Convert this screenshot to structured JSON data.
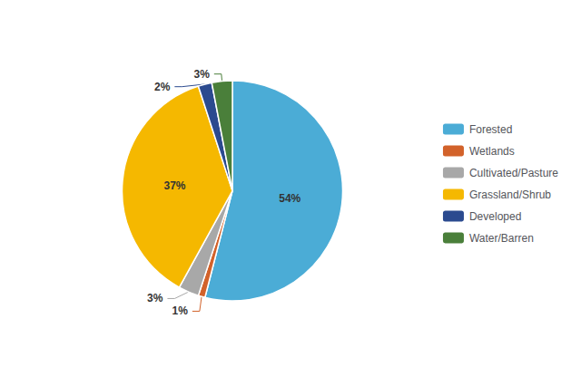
{
  "chart_data": {
    "type": "pie",
    "categories": [
      "Forested",
      "Wetlands",
      "Cultivated/Pasture",
      "Grassland/Shrub",
      "Developed",
      "Water/Barren"
    ],
    "values": [
      54,
      1,
      3,
      37,
      2,
      3
    ],
    "value_labels": [
      "54%",
      "1%",
      "3%",
      "37%",
      "2%",
      "3%"
    ],
    "colors": [
      "#4BACD6",
      "#D2622A",
      "#A8A8A8",
      "#F5B800",
      "#2B4A8F",
      "#4A7F3A"
    ],
    "data_labels": true,
    "legend": "right"
  }
}
